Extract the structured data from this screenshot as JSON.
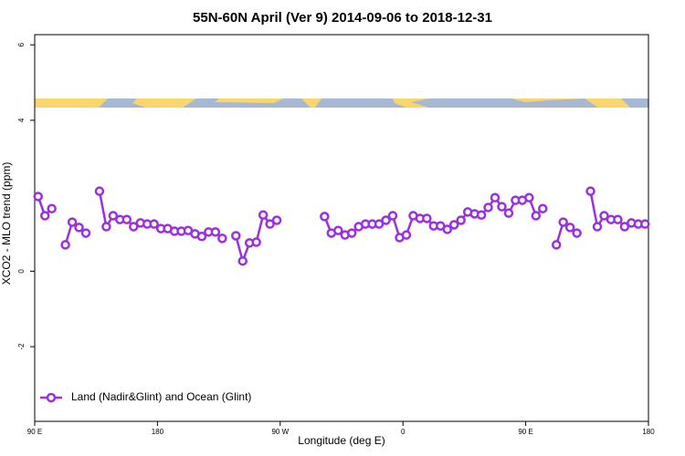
{
  "chart_data": {
    "type": "line",
    "title": "55N-60N April (Ver 9)   2014-09-06 to 2018-12-31",
    "x_label": "Longitude (deg E)",
    "y_label": "XCO2 - MLO trend (ppm)",
    "xlim": [
      90,
      540
    ],
    "ylim": [
      -3.98,
      6.27
    ],
    "xticks": [
      {
        "value": 90,
        "label": "90 E"
      },
      180,
      {
        "value": 270,
        "label": "90 W"
      },
      {
        "value": 360,
        "label": "0"
      },
      {
        "value": 450,
        "label": "90 E"
      },
      {
        "value": 540,
        "label": "180"
      }
    ],
    "yticks": [
      -2,
      0,
      4,
      6
    ],
    "legend": "lower left",
    "x": [
      92.5,
      97.5,
      102.5,
      107.5,
      112.5,
      117.5,
      122.5,
      127.5,
      132.5,
      137.5,
      142.5,
      147.5,
      152.5,
      157.5,
      162.5,
      167.5,
      172.5,
      177.5,
      182.5,
      187.5,
      192.5,
      197.5,
      202.5,
      207.5,
      212.5,
      217.5,
      222.5,
      227.5,
      232.5,
      237.5,
      242.5,
      247.5,
      252.5,
      257.5,
      262.5,
      267.5,
      272.5,
      302.5,
      307.5,
      312.5,
      317.5,
      322.5,
      327.5,
      332.5,
      337.5,
      342.5,
      347.5,
      352.5,
      357.5,
      362.5,
      367.5,
      372.5,
      377.5,
      382.5,
      387.5,
      392.5,
      397.5,
      402.5,
      407.5,
      412.5,
      417.5,
      422.5,
      427.5,
      432.5,
      437.5,
      442.5,
      447.5,
      452.5,
      457.5,
      462.5,
      467.5,
      472.5,
      477.5,
      482.5,
      487.5,
      492.5,
      497.5,
      502.5,
      507.5,
      512.5,
      517.5,
      522.5,
      527.5,
      532.5,
      537.5
    ],
    "series": [
      {
        "name": "Land (Nadir&Glint) and Ocean (Glint)",
        "color": "#9b30e0",
        "values": [
          1.98,
          1.47,
          1.66,
          null,
          0.7,
          1.3,
          1.16,
          1.01,
          null,
          2.12,
          1.18,
          1.47,
          1.37,
          1.37,
          1.18,
          1.28,
          1.25,
          1.25,
          1.13,
          1.13,
          1.06,
          1.06,
          1.08,
          0.99,
          0.92,
          1.04,
          1.04,
          0.87,
          null,
          0.94,
          0.27,
          0.75,
          0.77,
          1.49,
          1.25,
          1.35,
          null,
          1.45,
          1.01,
          1.08,
          0.96,
          1.01,
          1.18,
          1.25,
          1.25,
          1.25,
          1.35,
          1.47,
          0.89,
          0.96,
          1.47,
          1.4,
          1.4,
          1.2,
          1.2,
          1.11,
          1.23,
          1.35,
          1.57,
          1.52,
          1.49,
          1.69,
          1.95,
          1.71,
          1.54,
          1.88,
          1.88,
          1.95,
          1.47,
          1.66,
          null,
          0.7,
          1.3,
          1.16,
          1.01,
          null,
          2.12,
          1.18,
          1.47,
          1.37,
          1.37,
          1.18,
          1.28,
          1.25,
          1.25
        ]
      }
    ]
  }
}
